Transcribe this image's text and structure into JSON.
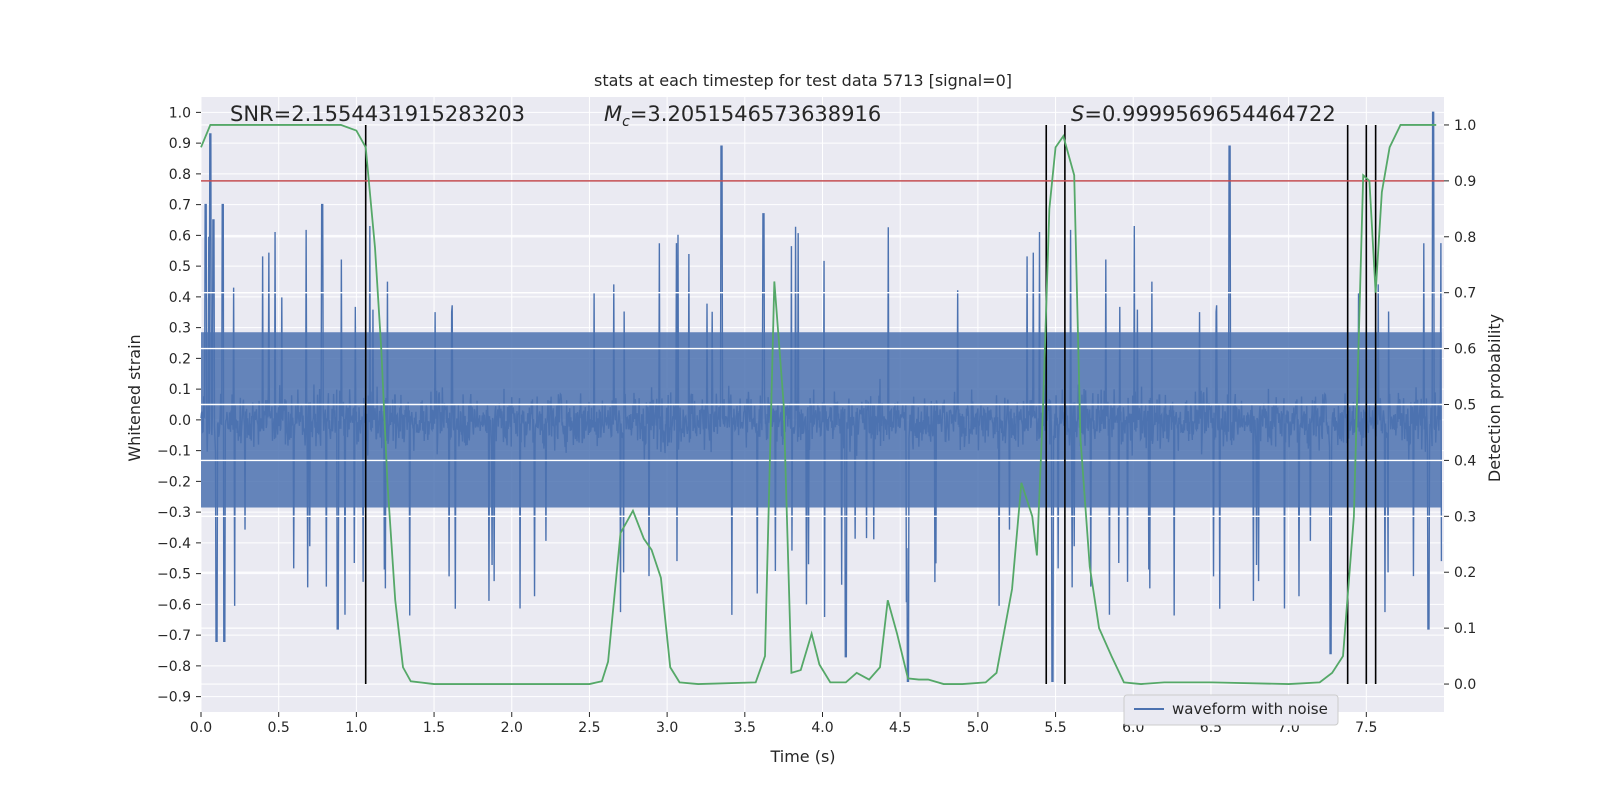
{
  "chart_data": {
    "type": "line",
    "title": "stats at each timestep for test data 5713 [signal=0]",
    "xlabel": "Time (s)",
    "ylabel_left": "Whitened strain",
    "ylabel_right": "Detection probability",
    "xlim": [
      0.0,
      8.0
    ],
    "ylim_left": [
      -0.95,
      1.05
    ],
    "ylim_right": [
      -0.05,
      1.05
    ],
    "x_ticks": [
      0.0,
      0.5,
      1.0,
      1.5,
      2.0,
      2.5,
      3.0,
      3.5,
      4.0,
      4.5,
      5.0,
      5.5,
      6.0,
      6.5,
      7.0,
      7.5
    ],
    "x_tick_labels": [
      "0.0",
      "0.5",
      "1.0",
      "1.5",
      "2.0",
      "2.5",
      "3.0",
      "3.5",
      "4.0",
      "4.5",
      "5.0",
      "5.5",
      "6.0",
      "6.5",
      "7.0",
      "7.5"
    ],
    "y_left_ticks": [
      1.0,
      0.9,
      0.8,
      0.7,
      0.6,
      0.5,
      0.4,
      0.3,
      0.2,
      0.1,
      0.0,
      -0.1,
      -0.2,
      -0.3,
      -0.4,
      -0.5,
      -0.6,
      -0.7,
      -0.8,
      -0.9
    ],
    "y_left_tick_labels": [
      "1.0",
      "0.9",
      "0.8",
      "0.7",
      "0.6",
      "0.5",
      "0.4",
      "0.3",
      "0.2",
      "0.1",
      "0.0",
      "−0.1",
      "−0.2",
      "−0.3",
      "−0.4",
      "−0.5",
      "−0.6",
      "−0.7",
      "−0.8",
      "−0.9"
    ],
    "y_right_ticks": [
      1.0,
      0.9,
      0.8,
      0.7,
      0.6,
      0.5,
      0.4,
      0.3,
      0.2,
      0.1,
      0.0
    ],
    "y_right_tick_labels": [
      "1.0",
      "0.9",
      "0.8",
      "0.7",
      "0.6",
      "0.5",
      "0.4",
      "0.3",
      "0.2",
      "0.1",
      "0.0"
    ],
    "annotations": {
      "snr_text": "SNR=2.1554431915283203",
      "mc_symbol": "M",
      "mc_sub": "c",
      "mc_value": "=3.2051546573638916",
      "s_symbol": "S",
      "s_value": "=0.9999569654464722"
    },
    "threshold": {
      "axis": "right",
      "value": 0.9,
      "color": "#c44e52"
    },
    "detection_markers_x": [
      1.06,
      5.44,
      5.56,
      7.38,
      7.5,
      7.56
    ],
    "legend": {
      "label": "waveform with noise",
      "placement": "lower-right"
    },
    "waveform": {
      "name": "waveform with noise",
      "color": "#4c72b0",
      "note": "dense noisy strain series; envelope approx. from visible spikes",
      "core_amplitude": 0.3,
      "spikes": [
        {
          "x": 0.03,
          "y": 0.7
        },
        {
          "x": 0.06,
          "y": 0.93
        },
        {
          "x": 0.08,
          "y": 0.65
        },
        {
          "x": 0.14,
          "y": 0.7
        },
        {
          "x": 0.1,
          "y": -0.72
        },
        {
          "x": 0.15,
          "y": -0.72
        },
        {
          "x": 0.78,
          "y": 0.7
        },
        {
          "x": 0.88,
          "y": -0.68
        },
        {
          "x": 3.35,
          "y": 0.89
        },
        {
          "x": 3.62,
          "y": 0.67
        },
        {
          "x": 4.15,
          "y": -0.77
        },
        {
          "x": 4.55,
          "y": -0.85
        },
        {
          "x": 5.48,
          "y": -0.85
        },
        {
          "x": 6.62,
          "y": 0.89
        },
        {
          "x": 7.27,
          "y": -0.76
        },
        {
          "x": 7.93,
          "y": 1.0
        },
        {
          "x": 7.9,
          "y": -0.68
        }
      ]
    },
    "series": [
      {
        "name": "detection probability",
        "axis": "right",
        "color": "#55a868",
        "x": [
          0.0,
          0.06,
          0.3,
          0.6,
          0.9,
          1.0,
          1.06,
          1.12,
          1.16,
          1.2,
          1.25,
          1.3,
          1.35,
          1.5,
          2.0,
          2.5,
          2.58,
          2.62,
          2.7,
          2.78,
          2.85,
          2.9,
          2.96,
          3.02,
          3.08,
          3.2,
          3.57,
          3.63,
          3.69,
          3.75,
          3.8,
          3.86,
          3.93,
          3.98,
          4.05,
          4.15,
          4.22,
          4.3,
          4.37,
          4.42,
          4.48,
          4.55,
          4.62,
          4.68,
          4.78,
          4.9,
          5.05,
          5.12,
          5.22,
          5.28,
          5.35,
          5.38,
          5.42,
          5.46,
          5.5,
          5.55,
          5.58,
          5.62,
          5.66,
          5.72,
          5.78,
          5.86,
          5.94,
          6.05,
          6.2,
          6.5,
          7.0,
          7.2,
          7.28,
          7.35,
          7.42,
          7.48,
          7.52,
          7.56,
          7.6,
          7.65,
          7.72,
          7.78,
          7.85,
          7.95
        ],
        "y": [
          0.96,
          1.0,
          1.0,
          1.0,
          1.0,
          0.99,
          0.96,
          0.78,
          0.6,
          0.36,
          0.15,
          0.03,
          0.005,
          0.0,
          0.0,
          0.0,
          0.005,
          0.04,
          0.27,
          0.31,
          0.26,
          0.24,
          0.19,
          0.03,
          0.003,
          0.0,
          0.003,
          0.05,
          0.72,
          0.5,
          0.02,
          0.025,
          0.09,
          0.035,
          0.003,
          0.003,
          0.02,
          0.008,
          0.03,
          0.15,
          0.09,
          0.01,
          0.008,
          0.008,
          0.0,
          0.0,
          0.003,
          0.02,
          0.17,
          0.36,
          0.3,
          0.23,
          0.5,
          0.85,
          0.96,
          0.98,
          0.95,
          0.91,
          0.44,
          0.21,
          0.1,
          0.05,
          0.003,
          0.0,
          0.003,
          0.003,
          0.0,
          0.003,
          0.02,
          0.05,
          0.3,
          0.91,
          0.9,
          0.7,
          0.88,
          0.96,
          1.0,
          1.0,
          1.0,
          1.0
        ]
      }
    ]
  }
}
